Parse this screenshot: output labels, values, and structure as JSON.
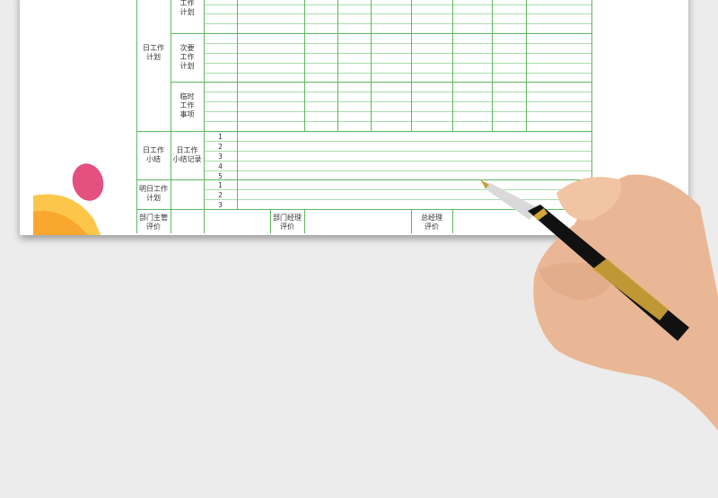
{
  "sheet": {
    "daily_plan": {
      "label": "日工作\n计划",
      "groups": [
        {
          "label": "工作\n计划"
        },
        {
          "label": "次要\n工作\n计划"
        },
        {
          "label": "临时\n工作\n事项"
        }
      ]
    },
    "daily_summary": {
      "label": "日工作\n小结",
      "sub_label": "日工作\n小结记录",
      "numbers": [
        "1",
        "2",
        "3",
        "4",
        "5"
      ]
    },
    "tomorrow_plan": {
      "label": "明日工作\n计划",
      "numbers": [
        "1",
        "2",
        "3"
      ]
    },
    "evaluation": {
      "supervisor": "部门主管\n评价",
      "dept_manager": "部门经理\n评价",
      "general_manager": "总经理\n评价"
    },
    "grid_color": "#5cb85c"
  },
  "decor": {
    "pink": "#e4507f",
    "orange": "#f9a72f",
    "yellow": "#fcc64a"
  }
}
